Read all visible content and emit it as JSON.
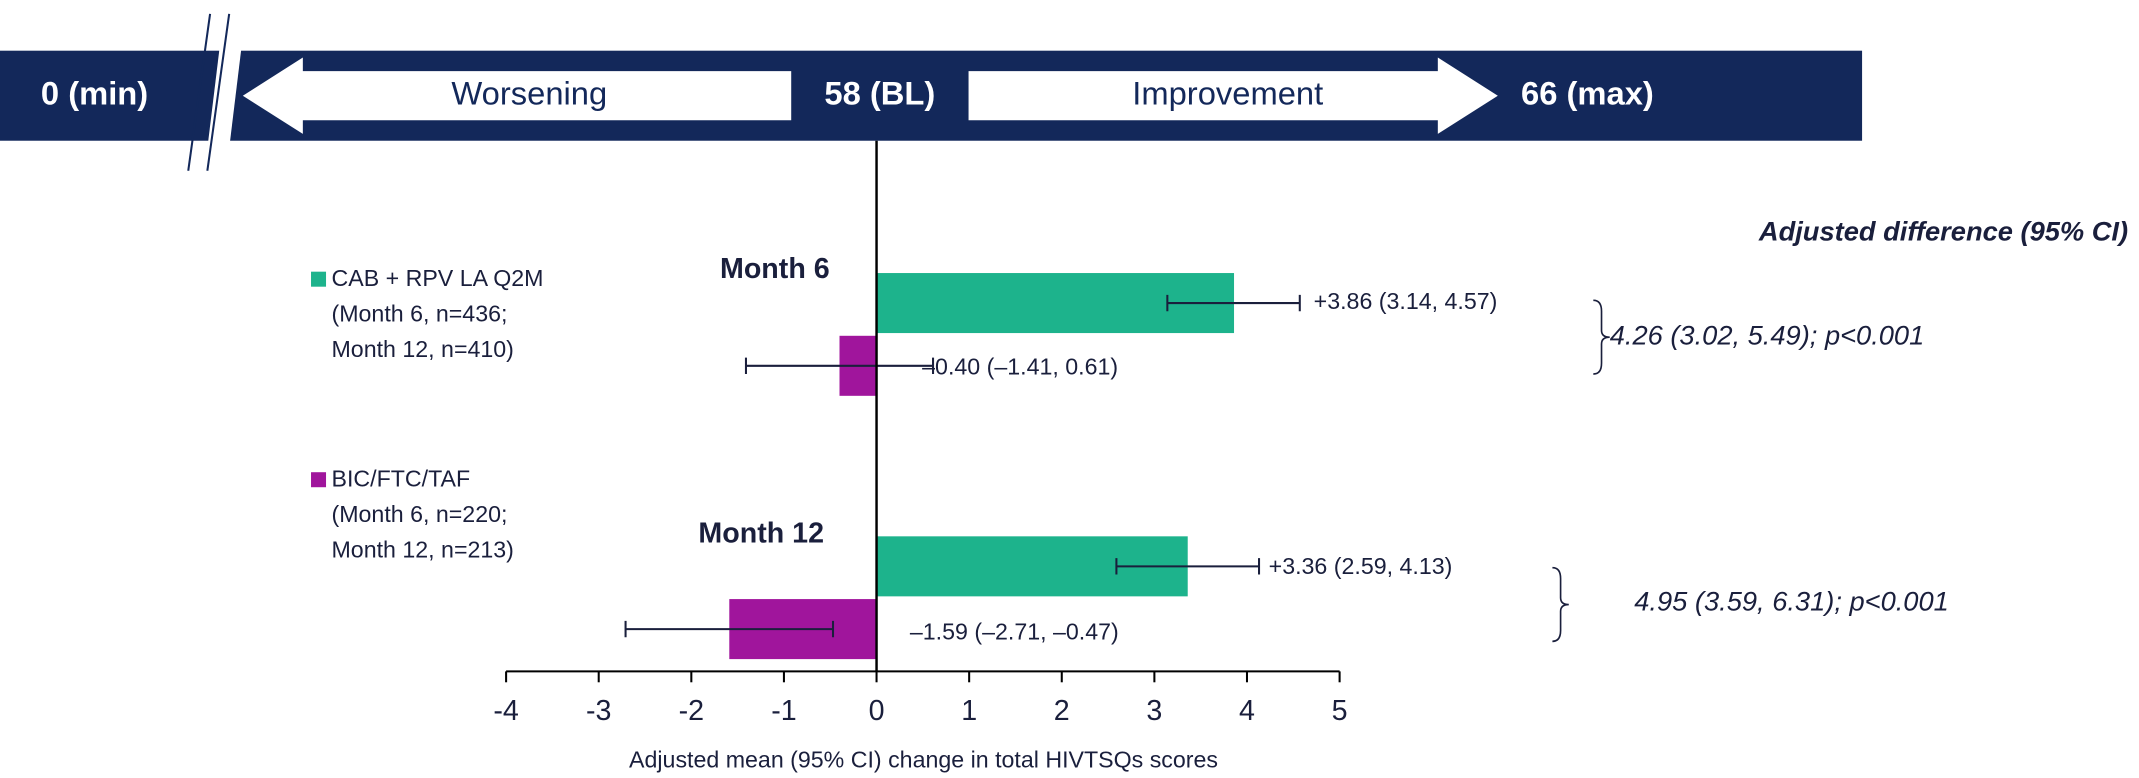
{
  "chart_data": {
    "type": "bar",
    "orientation": "horizontal",
    "banner": {
      "min": "0 (min)",
      "left": "Worsening",
      "center": "58 (BL)",
      "right": "Improvement",
      "max": "66 (max)"
    },
    "categories": [
      "Month 6",
      "Month 12"
    ],
    "series": [
      {
        "name": "CAB + RPV LA Q2M",
        "note": [
          "(Month 6, n=436;",
          "Month 12, n=410)"
        ],
        "color": "#1db38c",
        "values": [
          3.86,
          3.36
        ],
        "ci_low": [
          3.14,
          2.59
        ],
        "ci_high": [
          4.57,
          4.13
        ],
        "value_labels": [
          "+3.86 (3.14, 4.57)",
          "+3.36 (2.59, 4.13)"
        ]
      },
      {
        "name": "BIC/FTC/TAF",
        "note": [
          "(Month 6, n=220;",
          "Month 12, n=213)"
        ],
        "color": "#a0159c",
        "values": [
          -0.4,
          -1.59
        ],
        "ci_low": [
          -1.41,
          -2.71
        ],
        "ci_high": [
          0.61,
          -0.47
        ],
        "value_labels": [
          "–0.40 (–1.41, 0.61)",
          "–1.59 (–2.71, –0.47)"
        ]
      }
    ],
    "differences_title": "Adjusted difference (95% CI)",
    "differences": [
      "4.26 (3.02, 5.49); p<0.001",
      "4.95 (3.59, 6.31); p<0.001"
    ],
    "xlabel": "Adjusted mean (95% CI) change in total HIVTSQs scores",
    "xlim": [
      -4,
      5
    ],
    "xticks": [
      -4,
      -3,
      -2,
      -1,
      0,
      1,
      2,
      3,
      4,
      5
    ]
  }
}
